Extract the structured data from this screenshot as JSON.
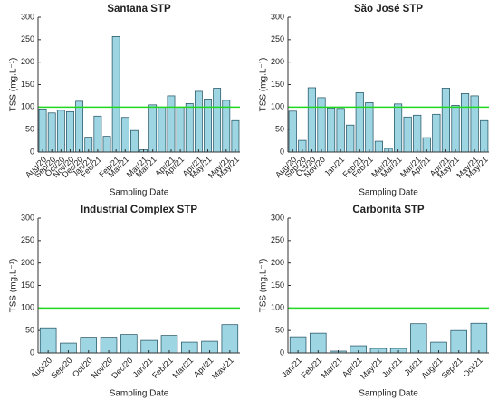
{
  "chart_data": [
    {
      "type": "bar",
      "title": "Santana STP",
      "xlabel": "Sampling Date",
      "ylabel": "TSS (mg.L⁻¹)",
      "categories": [
        "Aug/20",
        "Sep/20",
        "Oct/20",
        "Nov/20",
        "Dec/20",
        "Jan/21",
        "Feb/21",
        null,
        "Feb/21",
        "Mar/21",
        null,
        "Mar/21",
        "Mar/21",
        null,
        "Apr/21",
        "Apr/21",
        null,
        "Apr/21",
        "May/21",
        null,
        "May/21",
        "May/21"
      ],
      "values": [
        96,
        87,
        93,
        90,
        113,
        33,
        80,
        35,
        257,
        77,
        48,
        5,
        105,
        100,
        125,
        100,
        108,
        135,
        118,
        142,
        115,
        70
      ],
      "color": "#9dd5e3",
      "threshold": 100,
      "threshold_color": "#1fd81f",
      "ylim": [
        0,
        300
      ],
      "yticks": [
        0,
        50,
        100,
        150,
        200,
        250,
        300
      ]
    },
    {
      "type": "bar",
      "title": "São José STP",
      "xlabel": "Sampling Date",
      "ylabel": "TSS (mg.L⁻¹)",
      "categories": [
        "Aug/20",
        "Sep/20",
        "Oct/20",
        "Nov/20",
        null,
        "Jan/21",
        null,
        "Feb/21",
        "Feb/21",
        null,
        "Mar/21",
        "Mar/21",
        null,
        "Mar/21",
        "Apr/21",
        null,
        "Apr/21",
        "May/21",
        null,
        "May/21",
        "May/21"
      ],
      "values": [
        91,
        26,
        143,
        121,
        98,
        97,
        60,
        132,
        110,
        24,
        8,
        107,
        78,
        82,
        32,
        84,
        142,
        104,
        130,
        125,
        70
      ],
      "color": "#9dd5e3",
      "threshold": 100,
      "threshold_color": "#1fd81f",
      "ylim": [
        0,
        300
      ],
      "yticks": [
        0,
        50,
        100,
        150,
        200,
        250,
        300
      ]
    },
    {
      "type": "bar",
      "title": "Industrial Complex STP",
      "xlabel": "Sampling Date",
      "ylabel": "TSS (mg.L⁻¹)",
      "categories": [
        "Aug/20",
        "Sep/20",
        "Oct/20",
        "Nov/20",
        "Dec/20",
        "Jan/21",
        "Feb/21",
        "Mar/21",
        "Apr/21",
        "May/21"
      ],
      "values": [
        56,
        22,
        35,
        35,
        41,
        28,
        39,
        24,
        26,
        63
      ],
      "color": "#9dd5e3",
      "threshold": 100,
      "threshold_color": "#1fd81f",
      "ylim": [
        0,
        300
      ],
      "yticks": [
        0,
        50,
        100,
        150,
        200,
        250,
        300
      ]
    },
    {
      "type": "bar",
      "title": "Carbonita STP",
      "xlabel": "Sampling Date",
      "ylabel": "TSS (mg.L⁻¹)",
      "categories": [
        "Jan/21",
        "Feb/21",
        "Mar/21",
        "Apr/21",
        "May/21",
        "Jun/21",
        "Jul/21",
        "Aug/21",
        "Sep/21",
        "Oct/21"
      ],
      "values": [
        36,
        44,
        4,
        16,
        10,
        10,
        65,
        24,
        50,
        66
      ],
      "color": "#9dd5e3",
      "threshold": 100,
      "threshold_color": "#1fd81f",
      "ylim": [
        0,
        300
      ],
      "yticks": [
        0,
        50,
        100,
        150,
        200,
        250,
        300
      ]
    }
  ]
}
